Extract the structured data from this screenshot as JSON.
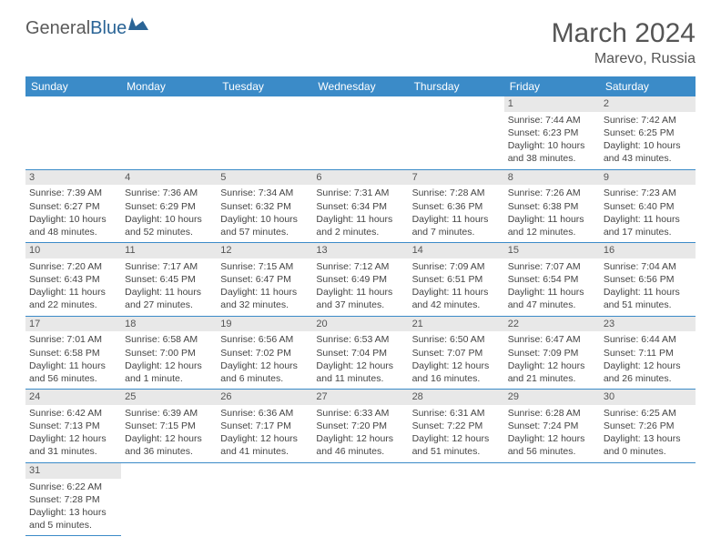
{
  "logo": {
    "text1": "General",
    "text2": "Blue"
  },
  "title": "March 2024",
  "location": "Marevo, Russia",
  "colors": {
    "header_bg": "#3b8bc8",
    "header_fg": "#ffffff",
    "daynum_bg": "#e8e8e8",
    "border": "#3b8bc8",
    "text": "#444444",
    "title_color": "#555555"
  },
  "weekdays": [
    "Sunday",
    "Monday",
    "Tuesday",
    "Wednesday",
    "Thursday",
    "Friday",
    "Saturday"
  ],
  "weeks": [
    [
      null,
      null,
      null,
      null,
      null,
      {
        "n": "1",
        "sr": "Sunrise: 7:44 AM",
        "ss": "Sunset: 6:23 PM",
        "dl": "Daylight: 10 hours and 38 minutes."
      },
      {
        "n": "2",
        "sr": "Sunrise: 7:42 AM",
        "ss": "Sunset: 6:25 PM",
        "dl": "Daylight: 10 hours and 43 minutes."
      }
    ],
    [
      {
        "n": "3",
        "sr": "Sunrise: 7:39 AM",
        "ss": "Sunset: 6:27 PM",
        "dl": "Daylight: 10 hours and 48 minutes."
      },
      {
        "n": "4",
        "sr": "Sunrise: 7:36 AM",
        "ss": "Sunset: 6:29 PM",
        "dl": "Daylight: 10 hours and 52 minutes."
      },
      {
        "n": "5",
        "sr": "Sunrise: 7:34 AM",
        "ss": "Sunset: 6:32 PM",
        "dl": "Daylight: 10 hours and 57 minutes."
      },
      {
        "n": "6",
        "sr": "Sunrise: 7:31 AM",
        "ss": "Sunset: 6:34 PM",
        "dl": "Daylight: 11 hours and 2 minutes."
      },
      {
        "n": "7",
        "sr": "Sunrise: 7:28 AM",
        "ss": "Sunset: 6:36 PM",
        "dl": "Daylight: 11 hours and 7 minutes."
      },
      {
        "n": "8",
        "sr": "Sunrise: 7:26 AM",
        "ss": "Sunset: 6:38 PM",
        "dl": "Daylight: 11 hours and 12 minutes."
      },
      {
        "n": "9",
        "sr": "Sunrise: 7:23 AM",
        "ss": "Sunset: 6:40 PM",
        "dl": "Daylight: 11 hours and 17 minutes."
      }
    ],
    [
      {
        "n": "10",
        "sr": "Sunrise: 7:20 AM",
        "ss": "Sunset: 6:43 PM",
        "dl": "Daylight: 11 hours and 22 minutes."
      },
      {
        "n": "11",
        "sr": "Sunrise: 7:17 AM",
        "ss": "Sunset: 6:45 PM",
        "dl": "Daylight: 11 hours and 27 minutes."
      },
      {
        "n": "12",
        "sr": "Sunrise: 7:15 AM",
        "ss": "Sunset: 6:47 PM",
        "dl": "Daylight: 11 hours and 32 minutes."
      },
      {
        "n": "13",
        "sr": "Sunrise: 7:12 AM",
        "ss": "Sunset: 6:49 PM",
        "dl": "Daylight: 11 hours and 37 minutes."
      },
      {
        "n": "14",
        "sr": "Sunrise: 7:09 AM",
        "ss": "Sunset: 6:51 PM",
        "dl": "Daylight: 11 hours and 42 minutes."
      },
      {
        "n": "15",
        "sr": "Sunrise: 7:07 AM",
        "ss": "Sunset: 6:54 PM",
        "dl": "Daylight: 11 hours and 47 minutes."
      },
      {
        "n": "16",
        "sr": "Sunrise: 7:04 AM",
        "ss": "Sunset: 6:56 PM",
        "dl": "Daylight: 11 hours and 51 minutes."
      }
    ],
    [
      {
        "n": "17",
        "sr": "Sunrise: 7:01 AM",
        "ss": "Sunset: 6:58 PM",
        "dl": "Daylight: 11 hours and 56 minutes."
      },
      {
        "n": "18",
        "sr": "Sunrise: 6:58 AM",
        "ss": "Sunset: 7:00 PM",
        "dl": "Daylight: 12 hours and 1 minute."
      },
      {
        "n": "19",
        "sr": "Sunrise: 6:56 AM",
        "ss": "Sunset: 7:02 PM",
        "dl": "Daylight: 12 hours and 6 minutes."
      },
      {
        "n": "20",
        "sr": "Sunrise: 6:53 AM",
        "ss": "Sunset: 7:04 PM",
        "dl": "Daylight: 12 hours and 11 minutes."
      },
      {
        "n": "21",
        "sr": "Sunrise: 6:50 AM",
        "ss": "Sunset: 7:07 PM",
        "dl": "Daylight: 12 hours and 16 minutes."
      },
      {
        "n": "22",
        "sr": "Sunrise: 6:47 AM",
        "ss": "Sunset: 7:09 PM",
        "dl": "Daylight: 12 hours and 21 minutes."
      },
      {
        "n": "23",
        "sr": "Sunrise: 6:44 AM",
        "ss": "Sunset: 7:11 PM",
        "dl": "Daylight: 12 hours and 26 minutes."
      }
    ],
    [
      {
        "n": "24",
        "sr": "Sunrise: 6:42 AM",
        "ss": "Sunset: 7:13 PM",
        "dl": "Daylight: 12 hours and 31 minutes."
      },
      {
        "n": "25",
        "sr": "Sunrise: 6:39 AM",
        "ss": "Sunset: 7:15 PM",
        "dl": "Daylight: 12 hours and 36 minutes."
      },
      {
        "n": "26",
        "sr": "Sunrise: 6:36 AM",
        "ss": "Sunset: 7:17 PM",
        "dl": "Daylight: 12 hours and 41 minutes."
      },
      {
        "n": "27",
        "sr": "Sunrise: 6:33 AM",
        "ss": "Sunset: 7:20 PM",
        "dl": "Daylight: 12 hours and 46 minutes."
      },
      {
        "n": "28",
        "sr": "Sunrise: 6:31 AM",
        "ss": "Sunset: 7:22 PM",
        "dl": "Daylight: 12 hours and 51 minutes."
      },
      {
        "n": "29",
        "sr": "Sunrise: 6:28 AM",
        "ss": "Sunset: 7:24 PM",
        "dl": "Daylight: 12 hours and 56 minutes."
      },
      {
        "n": "30",
        "sr": "Sunrise: 6:25 AM",
        "ss": "Sunset: 7:26 PM",
        "dl": "Daylight: 13 hours and 0 minutes."
      }
    ],
    [
      {
        "n": "31",
        "sr": "Sunrise: 6:22 AM",
        "ss": "Sunset: 7:28 PM",
        "dl": "Daylight: 13 hours and 5 minutes."
      },
      null,
      null,
      null,
      null,
      null,
      null
    ]
  ]
}
